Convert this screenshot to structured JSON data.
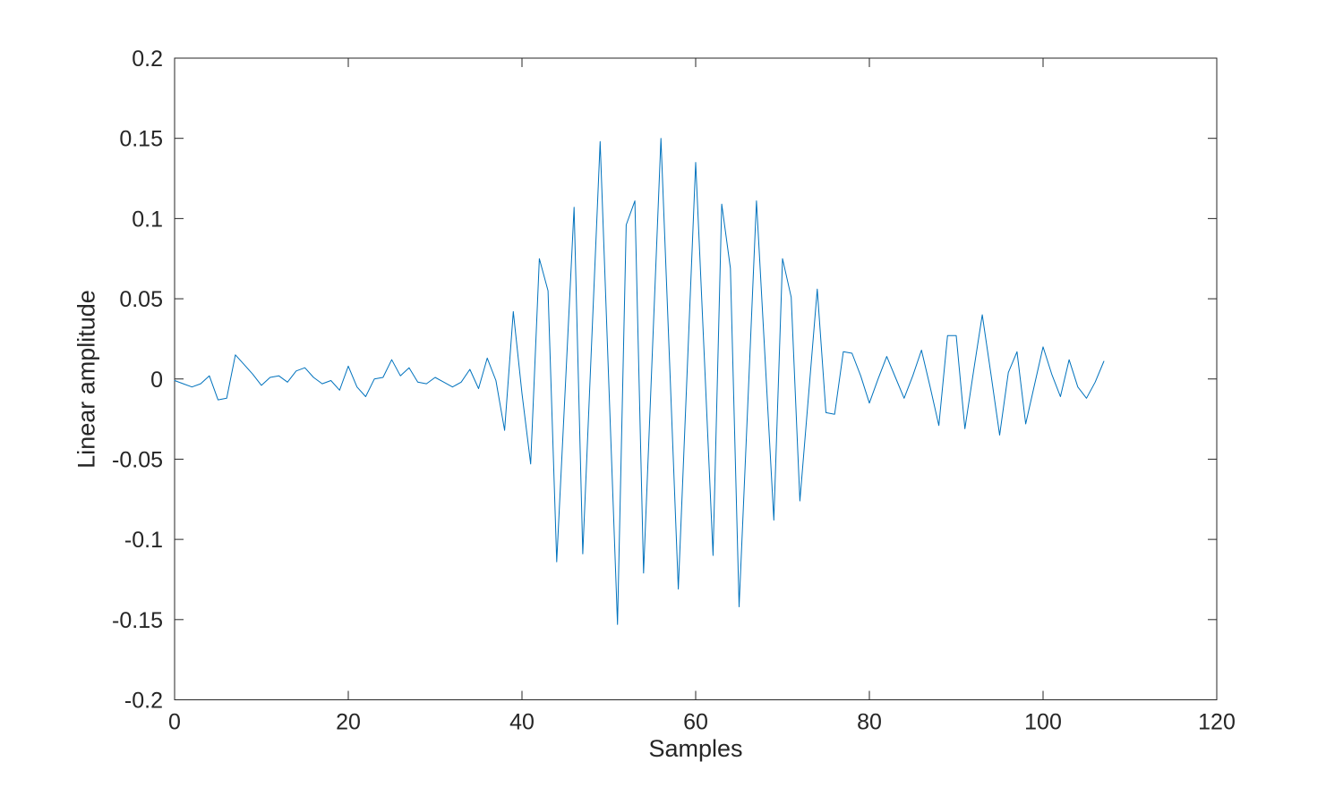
{
  "figure": {
    "background": "#ffffff"
  },
  "chart_data": {
    "type": "line",
    "title": "",
    "xlabel": "Samples",
    "ylabel": "Linear amplitude",
    "xlim": [
      0,
      120
    ],
    "ylim": [
      -0.2,
      0.2
    ],
    "xticks": [
      0,
      20,
      40,
      60,
      80,
      100,
      120
    ],
    "xtick_labels": [
      "0",
      "20",
      "40",
      "60",
      "80",
      "100",
      "120"
    ],
    "yticks": [
      -0.2,
      -0.15,
      -0.1,
      -0.05,
      0,
      0.05,
      0.1,
      0.15,
      0.2
    ],
    "ytick_labels": [
      "-0.2",
      "-0.15",
      "-0.1",
      "-0.05",
      "0",
      "0.05",
      "0.1",
      "0.15",
      "0.2"
    ],
    "grid": false,
    "box": true,
    "tick_direction": "in",
    "legend": null,
    "line_color": "#0072BD",
    "axis_color": "#262626",
    "x_start": 0,
    "x_step": 1,
    "values": [
      -0.001,
      -0.003,
      -0.005,
      -0.003,
      0.002,
      -0.013,
      -0.012,
      0.015,
      0.009,
      0.003,
      -0.004,
      0.001,
      0.002,
      -0.002,
      0.005,
      0.007,
      0.001,
      -0.003,
      -0.001,
      -0.007,
      0.008,
      -0.005,
      -0.011,
      0.0,
      0.001,
      0.012,
      0.002,
      0.007,
      -0.002,
      -0.003,
      0.001,
      -0.002,
      -0.005,
      -0.002,
      0.006,
      -0.006,
      0.013,
      -0.001,
      -0.032,
      0.042,
      -0.009,
      -0.053,
      0.075,
      0.055,
      -0.114,
      -0.004,
      0.107,
      -0.109,
      0.02,
      0.148,
      -0.003,
      -0.153,
      0.096,
      0.111,
      -0.121,
      0.015,
      0.15,
      0.01,
      -0.131,
      0.002,
      0.135,
      0.013,
      -0.11,
      0.109,
      0.069,
      -0.142,
      -0.016,
      0.111,
      0.012,
      -0.088,
      0.075,
      0.051,
      -0.076,
      -0.01,
      0.056,
      -0.021,
      -0.022,
      0.017,
      0.016,
      0.002,
      -0.015,
      0.0,
      0.014,
      0.001,
      -0.012,
      0.002,
      0.018,
      -0.005,
      -0.029,
      0.027,
      0.027,
      -0.031,
      0.005,
      0.04,
      0.003,
      -0.035,
      0.004,
      0.017,
      -0.028,
      -0.004,
      0.02,
      0.003,
      -0.011,
      0.012,
      -0.005,
      -0.012,
      -0.002,
      0.011
    ]
  }
}
